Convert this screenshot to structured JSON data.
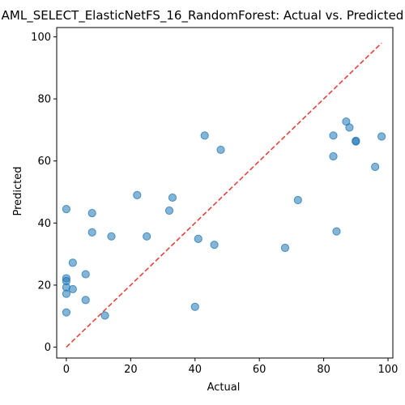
{
  "chart_data": {
    "type": "scatter",
    "title": "AML_SELECT_ElasticNetFS_16_RandomForest: Actual vs. Predicted",
    "xlabel": "Actual",
    "ylabel": "Predicted",
    "xlim": [
      -3,
      101.5
    ],
    "ylim": [
      -3.5,
      103
    ],
    "xticks": [
      0,
      20,
      40,
      60,
      80,
      100
    ],
    "yticks": [
      0,
      20,
      40,
      60,
      80,
      100
    ],
    "grid": false,
    "point_color": "#1f77b4",
    "reference_line": {
      "from": [
        0,
        0
      ],
      "to": [
        98,
        98
      ],
      "color": "#e8423c",
      "style": "dashed"
    },
    "points": [
      [
        0,
        44.5
      ],
      [
        0,
        22.2
      ],
      [
        0,
        21.3
      ],
      [
        0,
        19.3
      ],
      [
        0,
        17.2
      ],
      [
        0,
        11.2
      ],
      [
        2,
        27.2
      ],
      [
        2,
        18.7
      ],
      [
        6,
        23.5
      ],
      [
        6,
        15.2
      ],
      [
        8,
        43.2
      ],
      [
        8,
        37.0
      ],
      [
        12,
        10.2
      ],
      [
        14,
        35.7
      ],
      [
        22,
        49.0
      ],
      [
        25,
        35.7
      ],
      [
        32,
        44.0
      ],
      [
        33,
        48.2
      ],
      [
        40,
        13.0
      ],
      [
        41,
        34.9
      ],
      [
        43,
        68.2
      ],
      [
        46,
        33.0
      ],
      [
        48,
        63.6
      ],
      [
        68,
        32.0
      ],
      [
        72,
        47.4
      ],
      [
        83,
        68.2
      ],
      [
        83,
        61.5
      ],
      [
        84,
        37.3
      ],
      [
        87,
        72.7
      ],
      [
        88,
        70.8
      ],
      [
        90,
        66.3
      ],
      [
        90,
        66.5
      ],
      [
        96,
        58.1
      ],
      [
        98,
        67.9
      ]
    ]
  }
}
